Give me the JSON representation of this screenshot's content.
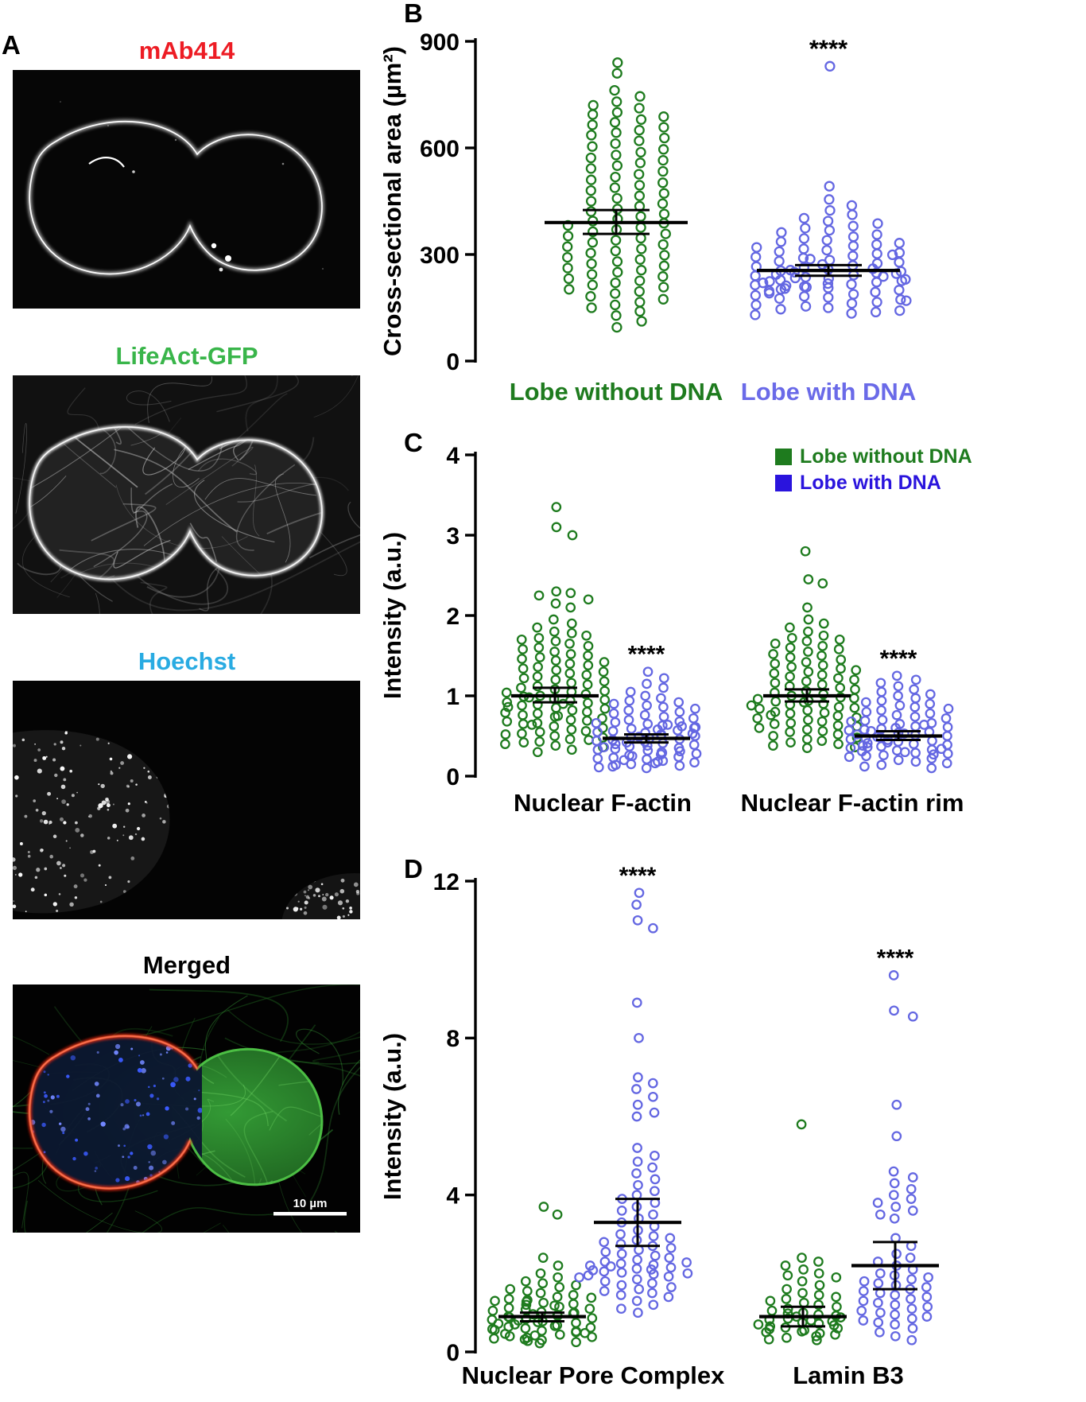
{
  "figure": {
    "panel_labels": {
      "A": "A",
      "B": "B",
      "C": "C",
      "D": "D"
    },
    "colors": {
      "green": "#1e7b1e",
      "blue_dots": "#6467e2",
      "blue_legend": "#2a14dd",
      "blue_axis_label": "#6a6ae8",
      "red_title": "#ed1c24",
      "green_title": "#39b54a",
      "cyan_title": "#29abe2"
    },
    "panels": {
      "A": {
        "images": [
          {
            "name": "mab414",
            "title": "mAb414",
            "title_color": "#ed1c24"
          },
          {
            "name": "lifeact",
            "title": "LifeAct-GFP",
            "title_color": "#39b54a"
          },
          {
            "name": "hoechst",
            "title": "Hoechst",
            "title_color": "#29abe2"
          },
          {
            "name": "merged",
            "title": "Merged",
            "title_color": "#000000",
            "scale_bar": "10 µm"
          }
        ]
      }
    }
  },
  "chart_data": [
    {
      "panel": "B",
      "type": "scatter",
      "title": "",
      "ylabel": "Cross-sectional area (µm²)",
      "ylim": [
        0,
        900
      ],
      "yticks": [
        0,
        300,
        600,
        900
      ],
      "grid": false,
      "categories": [
        "Lobe without DNA",
        "Lobe with DNA"
      ],
      "category_colors": [
        "#1e7b1e",
        "#6a6ae8"
      ],
      "significance": [
        {
          "series": 1,
          "label": "****"
        }
      ],
      "series": [
        {
          "name": "Lobe without DNA",
          "color": "#1e7b1e",
          "mean": 390,
          "ci_low": 358,
          "ci_high": 425,
          "values": [
            840,
            810,
            762,
            745,
            730,
            720,
            712,
            700,
            694,
            688,
            680,
            672,
            665,
            658,
            650,
            643,
            636,
            628,
            620,
            612,
            604,
            596,
            588,
            580,
            572,
            565,
            558,
            550,
            542,
            534,
            526,
            518,
            510,
            502,
            495,
            488,
            480,
            472,
            465,
            458,
            450,
            443,
            436,
            428,
            421,
            414,
            407,
            400,
            394,
            388,
            382,
            376,
            370,
            364,
            358,
            352,
            346,
            340,
            334,
            328,
            322,
            316,
            310,
            304,
            298,
            292,
            286,
            280,
            274,
            268,
            262,
            256,
            250,
            244,
            238,
            232,
            226,
            220,
            214,
            208,
            202,
            196,
            190,
            182,
            174,
            166,
            158,
            150,
            140,
            128,
            112,
            95
          ]
        },
        {
          "name": "Lobe with DNA",
          "color": "#6467e2",
          "mean": 255,
          "ci_low": 240,
          "ci_high": 270,
          "values": [
            830,
            492,
            455,
            438,
            424,
            412,
            402,
            394,
            387,
            380,
            374,
            368,
            362,
            356,
            350,
            345,
            340,
            336,
            332,
            328,
            324,
            320,
            316,
            312,
            308,
            305,
            302,
            299,
            296,
            293,
            290,
            287,
            284,
            281,
            278,
            275,
            272,
            269,
            266,
            263,
            260,
            258,
            256,
            254,
            252,
            250,
            248,
            246,
            244,
            242,
            240,
            238,
            236,
            234,
            232,
            230,
            228,
            226,
            224,
            222,
            220,
            218,
            216,
            214,
            212,
            210,
            208,
            206,
            204,
            202,
            200,
            197,
            194,
            191,
            188,
            185,
            182,
            179,
            176,
            173,
            170,
            166,
            162,
            158,
            154,
            150,
            146,
            142,
            138,
            134,
            130
          ]
        }
      ]
    },
    {
      "panel": "C",
      "type": "scatter",
      "title": "",
      "ylabel": "Intensity (a.u.)",
      "ylim": [
        0,
        4
      ],
      "yticks": [
        0,
        1,
        2,
        3,
        4
      ],
      "grid": false,
      "categories": [
        "Nuclear F-actin",
        "Nuclear F-actin rim"
      ],
      "legend": [
        {
          "label": "Lobe without DNA",
          "color": "#1e7b1e"
        },
        {
          "label": "Lobe with DNA",
          "color": "#2a14dd"
        }
      ],
      "legend_position": "top-right",
      "significance": [
        {
          "series": 1,
          "label": "****"
        },
        {
          "series": 3,
          "label": "****"
        }
      ],
      "series": [
        {
          "name": "Lobe without DNA / Nuclear F-actin",
          "color": "#1e7b1e",
          "mean": 1.0,
          "ci_low": 0.92,
          "ci_high": 1.1,
          "values": [
            3.35,
            3.1,
            3.0,
            2.3,
            2.28,
            2.25,
            2.2,
            2.15,
            2.1,
            1.95,
            1.9,
            1.85,
            1.8,
            1.78,
            1.75,
            1.72,
            1.7,
            1.68,
            1.65,
            1.62,
            1.6,
            1.58,
            1.55,
            1.52,
            1.5,
            1.48,
            1.46,
            1.44,
            1.42,
            1.4,
            1.38,
            1.36,
            1.34,
            1.32,
            1.3,
            1.28,
            1.26,
            1.24,
            1.22,
            1.2,
            1.18,
            1.16,
            1.14,
            1.12,
            1.1,
            1.08,
            1.06,
            1.05,
            1.04,
            1.02,
            1.0,
            0.99,
            0.98,
            0.96,
            0.95,
            0.94,
            0.92,
            0.91,
            0.9,
            0.89,
            0.88,
            0.86,
            0.85,
            0.84,
            0.82,
            0.8,
            0.79,
            0.78,
            0.76,
            0.75,
            0.74,
            0.72,
            0.7,
            0.69,
            0.68,
            0.66,
            0.65,
            0.64,
            0.62,
            0.6,
            0.58,
            0.56,
            0.55,
            0.53,
            0.52,
            0.5,
            0.48,
            0.46,
            0.45,
            0.43,
            0.42,
            0.4,
            0.38,
            0.36,
            0.33,
            0.3
          ]
        },
        {
          "name": "Lobe with DNA / Nuclear F-actin",
          "color": "#6467e2",
          "mean": 0.47,
          "ci_low": 0.42,
          "ci_high": 0.52,
          "values": [
            1.3,
            1.22,
            1.15,
            1.1,
            1.05,
            1.0,
            0.97,
            0.94,
            0.92,
            0.9,
            0.88,
            0.86,
            0.84,
            0.82,
            0.8,
            0.78,
            0.76,
            0.74,
            0.72,
            0.7,
            0.68,
            0.67,
            0.66,
            0.65,
            0.64,
            0.63,
            0.62,
            0.61,
            0.6,
            0.59,
            0.58,
            0.57,
            0.56,
            0.55,
            0.54,
            0.53,
            0.52,
            0.51,
            0.5,
            0.49,
            0.48,
            0.47,
            0.46,
            0.45,
            0.44,
            0.43,
            0.42,
            0.41,
            0.4,
            0.39,
            0.38,
            0.37,
            0.36,
            0.35,
            0.34,
            0.33,
            0.32,
            0.31,
            0.3,
            0.29,
            0.28,
            0.27,
            0.26,
            0.25,
            0.24,
            0.23,
            0.22,
            0.21,
            0.2,
            0.19,
            0.18,
            0.17,
            0.16,
            0.15,
            0.14,
            0.13,
            0.12,
            0.11,
            0.1
          ]
        },
        {
          "name": "Lobe without DNA / Nuclear F-actin rim",
          "color": "#1e7b1e",
          "mean": 1.0,
          "ci_low": 0.93,
          "ci_high": 1.08,
          "values": [
            2.8,
            2.45,
            2.4,
            2.1,
            1.95,
            1.9,
            1.85,
            1.8,
            1.75,
            1.72,
            1.7,
            1.68,
            1.65,
            1.62,
            1.6,
            1.58,
            1.55,
            1.52,
            1.5,
            1.48,
            1.45,
            1.42,
            1.4,
            1.38,
            1.36,
            1.34,
            1.32,
            1.3,
            1.28,
            1.26,
            1.24,
            1.22,
            1.2,
            1.18,
            1.16,
            1.14,
            1.12,
            1.1,
            1.08,
            1.06,
            1.04,
            1.02,
            1.0,
            0.98,
            0.97,
            0.96,
            0.94,
            0.93,
            0.92,
            0.9,
            0.89,
            0.88,
            0.86,
            0.85,
            0.84,
            0.82,
            0.8,
            0.79,
            0.78,
            0.76,
            0.75,
            0.73,
            0.72,
            0.7,
            0.68,
            0.66,
            0.65,
            0.63,
            0.62,
            0.6,
            0.58,
            0.56,
            0.55,
            0.52,
            0.5,
            0.48,
            0.46,
            0.44,
            0.42,
            0.4,
            0.38,
            0.36,
            0.35
          ]
        },
        {
          "name": "Lobe with DNA / Nuclear F-actin rim",
          "color": "#6467e2",
          "mean": 0.5,
          "ci_low": 0.45,
          "ci_high": 0.56,
          "values": [
            1.25,
            1.2,
            1.16,
            1.12,
            1.08,
            1.05,
            1.02,
            1.0,
            0.97,
            0.94,
            0.92,
            0.9,
            0.88,
            0.86,
            0.84,
            0.82,
            0.8,
            0.78,
            0.76,
            0.74,
            0.72,
            0.7,
            0.69,
            0.68,
            0.66,
            0.65,
            0.64,
            0.62,
            0.61,
            0.6,
            0.59,
            0.58,
            0.57,
            0.56,
            0.55,
            0.54,
            0.53,
            0.52,
            0.51,
            0.5,
            0.49,
            0.48,
            0.47,
            0.46,
            0.45,
            0.44,
            0.43,
            0.42,
            0.41,
            0.4,
            0.39,
            0.38,
            0.37,
            0.36,
            0.35,
            0.34,
            0.33,
            0.32,
            0.31,
            0.3,
            0.29,
            0.28,
            0.27,
            0.26,
            0.25,
            0.24,
            0.22,
            0.2,
            0.18,
            0.16,
            0.14,
            0.12,
            0.1
          ]
        }
      ]
    },
    {
      "panel": "D",
      "type": "scatter",
      "title": "",
      "ylabel": "Intensity (a.u.)",
      "ylim": [
        0,
        12
      ],
      "yticks": [
        0,
        4,
        8,
        12
      ],
      "grid": false,
      "categories": [
        "Nuclear Pore Complex",
        "Lamin B3"
      ],
      "significance": [
        {
          "series": 1,
          "label": "****"
        },
        {
          "series": 3,
          "label": "****"
        }
      ],
      "series": [
        {
          "name": "Lobe without DNA / Nuclear Pore Complex",
          "color": "#1e7b1e",
          "mean": 0.9,
          "ci_low": 0.78,
          "ci_high": 1.0,
          "values": [
            3.7,
            3.5,
            2.4,
            2.2,
            2.0,
            1.9,
            1.8,
            1.75,
            1.7,
            1.65,
            1.6,
            1.55,
            1.5,
            1.45,
            1.4,
            1.38,
            1.35,
            1.32,
            1.3,
            1.28,
            1.25,
            1.22,
            1.2,
            1.18,
            1.15,
            1.12,
            1.1,
            1.08,
            1.05,
            1.02,
            1.0,
            0.98,
            0.96,
            0.94,
            0.92,
            0.9,
            0.88,
            0.86,
            0.84,
            0.82,
            0.8,
            0.78,
            0.76,
            0.74,
            0.72,
            0.7,
            0.68,
            0.66,
            0.64,
            0.62,
            0.6,
            0.58,
            0.56,
            0.54,
            0.52,
            0.5,
            0.48,
            0.46,
            0.44,
            0.42,
            0.4,
            0.38,
            0.36,
            0.34,
            0.32,
            0.3,
            0.28,
            0.25,
            0.22
          ]
        },
        {
          "name": "Lobe with DNA / Nuclear Pore Complex",
          "color": "#6467e2",
          "mean": 3.3,
          "ci_low": 2.7,
          "ci_high": 3.9,
          "values": [
            11.7,
            11.4,
            11.0,
            10.8,
            8.9,
            8.0,
            7.0,
            6.85,
            6.7,
            6.5,
            6.3,
            6.1,
            6.0,
            5.2,
            5.0,
            4.85,
            4.7,
            4.55,
            4.4,
            4.25,
            4.1,
            4.0,
            3.9,
            3.8,
            3.7,
            3.6,
            3.5,
            3.4,
            3.3,
            3.2,
            3.1,
            3.0,
            2.95,
            2.9,
            2.85,
            2.8,
            2.75,
            2.7,
            2.65,
            2.6,
            2.55,
            2.5,
            2.45,
            2.4,
            2.35,
            2.3,
            2.28,
            2.25,
            2.22,
            2.2,
            2.18,
            2.15,
            2.12,
            2.1,
            2.08,
            2.05,
            2.02,
            2.0,
            1.98,
            1.95,
            1.92,
            1.9,
            1.85,
            1.8,
            1.75,
            1.7,
            1.65,
            1.6,
            1.55,
            1.5,
            1.45,
            1.4,
            1.3,
            1.2,
            1.1,
            1.0
          ]
        },
        {
          "name": "Lobe without DNA / Lamin B3",
          "color": "#1e7b1e",
          "mean": 0.9,
          "ci_low": 0.65,
          "ci_high": 1.15,
          "values": [
            5.8,
            2.4,
            2.3,
            2.2,
            2.1,
            2.0,
            1.95,
            1.9,
            1.8,
            1.7,
            1.6,
            1.5,
            1.45,
            1.4,
            1.35,
            1.3,
            1.25,
            1.2,
            1.15,
            1.1,
            1.05,
            1.0,
            0.98,
            0.95,
            0.92,
            0.9,
            0.88,
            0.85,
            0.82,
            0.8,
            0.78,
            0.75,
            0.72,
            0.7,
            0.68,
            0.65,
            0.62,
            0.6,
            0.58,
            0.55,
            0.52,
            0.5,
            0.47,
            0.44,
            0.4,
            0.36,
            0.32,
            0.3
          ]
        },
        {
          "name": "Lobe with DNA / Lamin B3",
          "color": "#6467e2",
          "mean": 2.2,
          "ci_low": 1.6,
          "ci_high": 2.8,
          "values": [
            9.6,
            8.7,
            8.55,
            6.3,
            5.5,
            4.6,
            4.45,
            4.3,
            4.15,
            4.0,
            3.9,
            3.8,
            3.7,
            3.6,
            3.5,
            3.4,
            2.9,
            2.7,
            2.5,
            2.4,
            2.3,
            2.2,
            2.1,
            2.0,
            1.95,
            1.9,
            1.85,
            1.8,
            1.75,
            1.7,
            1.65,
            1.6,
            1.55,
            1.5,
            1.45,
            1.4,
            1.35,
            1.3,
            1.25,
            1.2,
            1.15,
            1.1,
            1.05,
            1.0,
            0.95,
            0.9,
            0.85,
            0.8,
            0.75,
            0.7,
            0.6,
            0.5,
            0.4,
            0.3
          ]
        }
      ]
    }
  ]
}
